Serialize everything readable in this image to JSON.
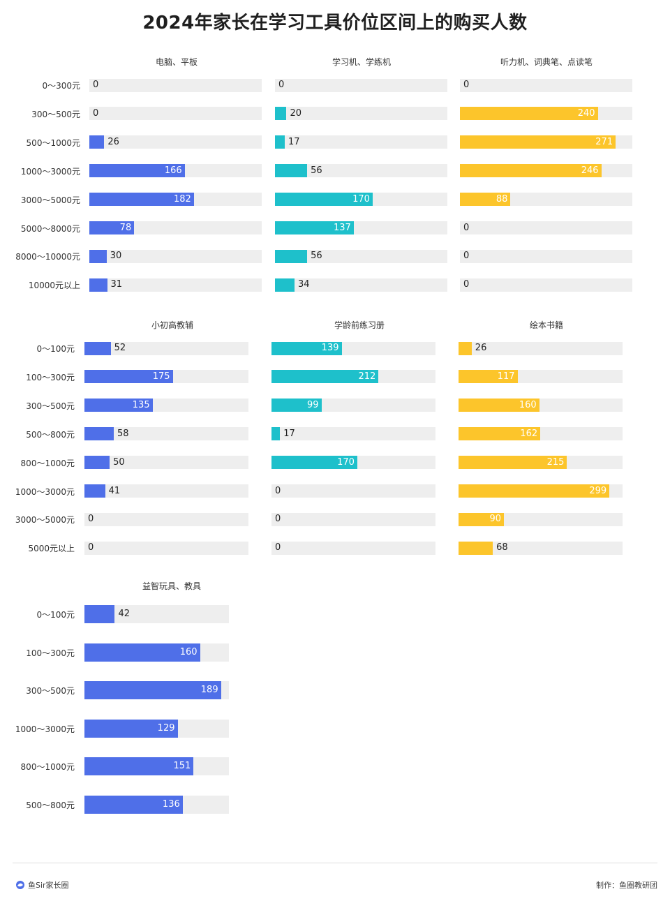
{
  "title": "2024年家长在学习工具价位区间上的购买人数",
  "colors": {
    "blue": "#4f6fe8",
    "cyan": "#1ec0cb",
    "yellow": "#fcc52b",
    "track": "#eeeeee"
  },
  "footer": {
    "brand": "鱼Sir家长圈",
    "credit": "制作：鱼圈教研团"
  },
  "chart_data": [
    {
      "type": "bar",
      "title": "电脑、平板",
      "color": "blue",
      "xlim": [
        0,
        300
      ],
      "categories": [
        "0～300元",
        "300～500元",
        "500～1000元",
        "1000～3000元",
        "3000～5000元",
        "5000～8000元",
        "8000～10000元",
        "10000元以上"
      ],
      "values": [
        0,
        0,
        26,
        166,
        182,
        78,
        30,
        31
      ]
    },
    {
      "type": "bar",
      "title": "学习机、学练机",
      "color": "cyan",
      "xlim": [
        0,
        300
      ],
      "categories": [
        "0～300元",
        "300～500元",
        "500～1000元",
        "1000～3000元",
        "3000～5000元",
        "5000～8000元",
        "8000～10000元",
        "10000元以上"
      ],
      "values": [
        0,
        20,
        17,
        56,
        170,
        137,
        56,
        34
      ]
    },
    {
      "type": "bar",
      "title": "听力机、词典笔、点读笔",
      "color": "yellow",
      "xlim": [
        0,
        300
      ],
      "categories": [
        "0～300元",
        "300～500元",
        "500～1000元",
        "1000～3000元",
        "3000～5000元",
        "5000～8000元",
        "8000～10000元",
        "10000元以上"
      ],
      "values": [
        0,
        240,
        271,
        246,
        88,
        0,
        0,
        0
      ]
    },
    {
      "type": "bar",
      "title": "小初高教辅",
      "color": "blue",
      "xlim": [
        0,
        325
      ],
      "categories": [
        "0～100元",
        "100～300元",
        "300～500元",
        "500～800元",
        "800～1000元",
        "1000～3000元",
        "3000～5000元",
        "5000元以上"
      ],
      "values": [
        52,
        175,
        135,
        58,
        50,
        41,
        0,
        0
      ]
    },
    {
      "type": "bar",
      "title": "学龄前练习册",
      "color": "cyan",
      "xlim": [
        0,
        325
      ],
      "categories": [
        "0～100元",
        "100～300元",
        "300～500元",
        "500～800元",
        "800～1000元",
        "1000～3000元",
        "3000～5000元",
        "5000元以上"
      ],
      "values": [
        139,
        212,
        99,
        17,
        170,
        0,
        0,
        0
      ]
    },
    {
      "type": "bar",
      "title": "绘本书籍",
      "color": "yellow",
      "xlim": [
        0,
        325
      ],
      "categories": [
        "0～100元",
        "100～300元",
        "300～500元",
        "500～800元",
        "800～1000元",
        "1000～3000元",
        "3000～5000元",
        "5000元以上"
      ],
      "values": [
        26,
        117,
        160,
        162,
        215,
        299,
        90,
        68
      ]
    },
    {
      "type": "bar",
      "title": "益智玩具、教具",
      "color": "blue",
      "xlim": [
        0,
        200
      ],
      "categories": [
        "0～100元",
        "100～300元",
        "300～500元",
        "1000～3000元",
        "800～1000元",
        "500～800元"
      ],
      "values": [
        42,
        160,
        189,
        129,
        151,
        136
      ]
    }
  ]
}
